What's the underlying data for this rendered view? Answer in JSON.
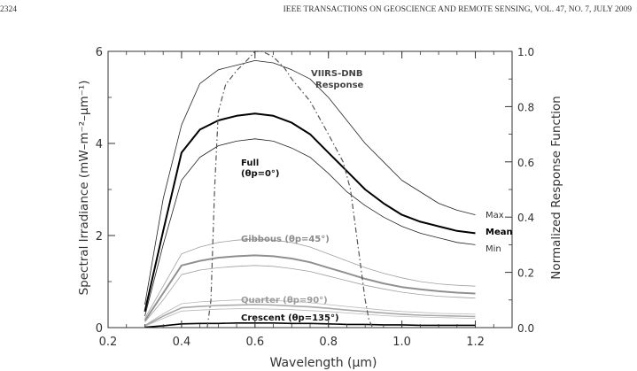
{
  "page": {
    "page_number": "2324",
    "journal_header": "IEEE TRANSACTIONS ON GEOSCIENCE AND REMOTE SENSING, VOL. 47, NO. 7, JULY 2009"
  },
  "chart_data": {
    "type": "line",
    "title": "",
    "xlabel": "Wavelength (μm)",
    "ylabel_left": "Spectral Irradiance (mW–m⁻²–μm⁻¹)",
    "ylabel_right": "Normalized Response Function",
    "xlim": [
      0.2,
      1.3
    ],
    "ylim_left": [
      0,
      6
    ],
    "ylim_right": [
      0,
      1.0
    ],
    "x_ticks": [
      "0.2",
      "0.4",
      "0.6",
      "0.8",
      "1.0",
      "1.2"
    ],
    "y_ticks_left": [
      "0",
      "2",
      "4",
      "6"
    ],
    "y_ticks_right": [
      "0.0",
      "0.2",
      "0.4",
      "0.6",
      "0.8",
      "1.0"
    ],
    "grid": false,
    "x": [
      0.3,
      0.35,
      0.4,
      0.45,
      0.5,
      0.55,
      0.6,
      0.65,
      0.7,
      0.75,
      0.8,
      0.85,
      0.9,
      0.95,
      1.0,
      1.05,
      1.1,
      1.15,
      1.2
    ],
    "series": [
      {
        "name": "Max",
        "phase": "Full",
        "color": "#222222",
        "width": 0.8,
        "values": [
          0.5,
          2.8,
          4.4,
          5.3,
          5.6,
          5.7,
          5.8,
          5.75,
          5.6,
          5.4,
          5.0,
          4.5,
          4.0,
          3.6,
          3.2,
          2.95,
          2.7,
          2.55,
          2.45
        ]
      },
      {
        "name": "Mean",
        "phase": "Full",
        "color": "#000000",
        "width": 2.0,
        "values": [
          0.35,
          2.1,
          3.8,
          4.3,
          4.5,
          4.6,
          4.65,
          4.6,
          4.45,
          4.2,
          3.8,
          3.4,
          3.0,
          2.7,
          2.45,
          2.3,
          2.2,
          2.1,
          2.05
        ]
      },
      {
        "name": "Min",
        "phase": "Full",
        "color": "#222222",
        "width": 0.8,
        "values": [
          0.25,
          1.8,
          3.2,
          3.7,
          3.95,
          4.05,
          4.1,
          4.05,
          3.9,
          3.7,
          3.35,
          2.95,
          2.65,
          2.4,
          2.2,
          2.05,
          1.95,
          1.85,
          1.8
        ]
      },
      {
        "name": "Max",
        "phase": "Gibbous",
        "color": "#a0a0a0",
        "width": 0.8,
        "values": [
          0.2,
          0.9,
          1.6,
          1.75,
          1.85,
          1.9,
          1.92,
          1.9,
          1.85,
          1.75,
          1.6,
          1.45,
          1.3,
          1.18,
          1.08,
          1.0,
          0.95,
          0.92,
          0.9
        ]
      },
      {
        "name": "Mean",
        "phase": "Gibbous",
        "color": "#909090",
        "width": 2.0,
        "values": [
          0.15,
          0.75,
          1.35,
          1.45,
          1.52,
          1.55,
          1.57,
          1.55,
          1.5,
          1.42,
          1.3,
          1.18,
          1.06,
          0.96,
          0.88,
          0.83,
          0.79,
          0.76,
          0.74
        ]
      },
      {
        "name": "Min",
        "phase": "Gibbous",
        "color": "#a0a0a0",
        "width": 0.8,
        "values": [
          0.12,
          0.6,
          1.15,
          1.25,
          1.3,
          1.33,
          1.35,
          1.33,
          1.28,
          1.22,
          1.12,
          1.02,
          0.92,
          0.84,
          0.77,
          0.72,
          0.68,
          0.66,
          0.64
        ]
      },
      {
        "name": "Max",
        "phase": "Quarter",
        "color": "#b8b8b8",
        "width": 0.8,
        "values": [
          0.05,
          0.3,
          0.52,
          0.56,
          0.58,
          0.6,
          0.6,
          0.59,
          0.57,
          0.54,
          0.5,
          0.46,
          0.42,
          0.38,
          0.35,
          0.33,
          0.31,
          0.3,
          0.29
        ]
      },
      {
        "name": "Mean",
        "phase": "Quarter",
        "color": "#a8a8a8",
        "width": 1.6,
        "values": [
          0.04,
          0.25,
          0.43,
          0.46,
          0.48,
          0.49,
          0.5,
          0.49,
          0.47,
          0.45,
          0.42,
          0.38,
          0.35,
          0.32,
          0.29,
          0.27,
          0.26,
          0.25,
          0.24
        ]
      },
      {
        "name": "Min",
        "phase": "Quarter",
        "color": "#b8b8b8",
        "width": 0.8,
        "values": [
          0.03,
          0.2,
          0.36,
          0.38,
          0.4,
          0.41,
          0.41,
          0.4,
          0.39,
          0.37,
          0.35,
          0.32,
          0.29,
          0.26,
          0.24,
          0.23,
          0.22,
          0.21,
          0.2
        ]
      },
      {
        "name": "Mean",
        "phase": "Crescent",
        "color": "#000000",
        "width": 1.6,
        "values": [
          0.01,
          0.04,
          0.08,
          0.09,
          0.09,
          0.1,
          0.1,
          0.1,
          0.09,
          0.09,
          0.08,
          0.07,
          0.07,
          0.06,
          0.06,
          0.05,
          0.05,
          0.05,
          0.05
        ]
      }
    ],
    "response": {
      "name": "VIIRS-DNB Response",
      "x": [
        0.47,
        0.48,
        0.49,
        0.5,
        0.52,
        0.55,
        0.58,
        0.6,
        0.62,
        0.65,
        0.68,
        0.7,
        0.75,
        0.8,
        0.84,
        0.86,
        0.88,
        0.9,
        0.91,
        0.92
      ],
      "values": [
        0.0,
        0.1,
        0.5,
        0.78,
        0.88,
        0.93,
        0.97,
        1.0,
        1.0,
        0.98,
        0.94,
        0.9,
        0.82,
        0.7,
        0.6,
        0.5,
        0.3,
        0.1,
        0.03,
        0.0
      ]
    },
    "annotations": {
      "response_label_1": "VIIRS-DNB",
      "response_label_2": "Response",
      "full_label_1": "Full",
      "full_label_2": "(θp=0°)",
      "gibbous_label": "Gibbous (θp=45°)",
      "quarter_label": "Quarter (θp=90°)",
      "crescent_label": "Crescent (θp=135°)",
      "max_label": "Max",
      "mean_label": "Mean",
      "min_label": "Min"
    }
  }
}
